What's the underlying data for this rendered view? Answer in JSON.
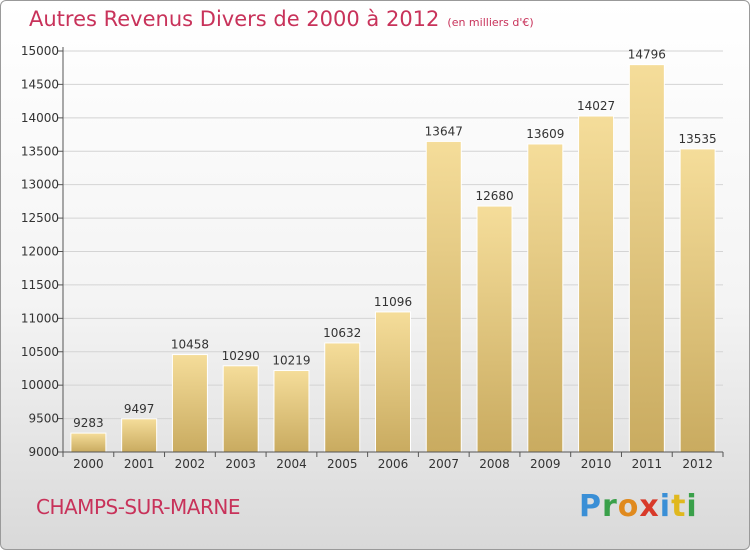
{
  "header": {
    "title": "Autres Revenus Divers de 2000 à 2012",
    "unit": "(en milliers d'€)"
  },
  "footer": {
    "city": "CHAMPS-SUR-MARNE",
    "logo": "Proxiti"
  },
  "chart_data": {
    "type": "bar",
    "title": "Autres Revenus Divers de 2000 à 2012",
    "subtitle": "(en milliers d'€)",
    "xlabel": "",
    "ylabel": "",
    "categories": [
      "2000",
      "2001",
      "2002",
      "2003",
      "2004",
      "2005",
      "2006",
      "2007",
      "2008",
      "2009",
      "2010",
      "2011",
      "2012"
    ],
    "values": [
      9283,
      9497,
      10458,
      10290,
      10219,
      10632,
      11096,
      13647,
      12680,
      13609,
      14027,
      14796,
      13535
    ],
    "data_labels": [
      "9283",
      "9497",
      "10458",
      "10290",
      "10219",
      "10632",
      "11096",
      "13647",
      "12680",
      "13609",
      "14027",
      "14796",
      "13535"
    ],
    "ylim": [
      9000,
      15000
    ],
    "yticks": [
      9000,
      9500,
      10000,
      10500,
      11000,
      11500,
      12000,
      12500,
      13000,
      13500,
      14000,
      14500,
      15000
    ],
    "ytick_labels": [
      "9000",
      "9500",
      "10000",
      "10500",
      "11000",
      "11500",
      "12000",
      "12500",
      "13000",
      "13500",
      "14000",
      "14500",
      "15000"
    ],
    "grid": true,
    "legend": "none",
    "colors": {
      "bar_top": "#f5dd9a",
      "bar_bottom": "#c9ab60",
      "grid": "#d4d4d4",
      "axis": "#555555",
      "title": "#c8325a"
    }
  }
}
